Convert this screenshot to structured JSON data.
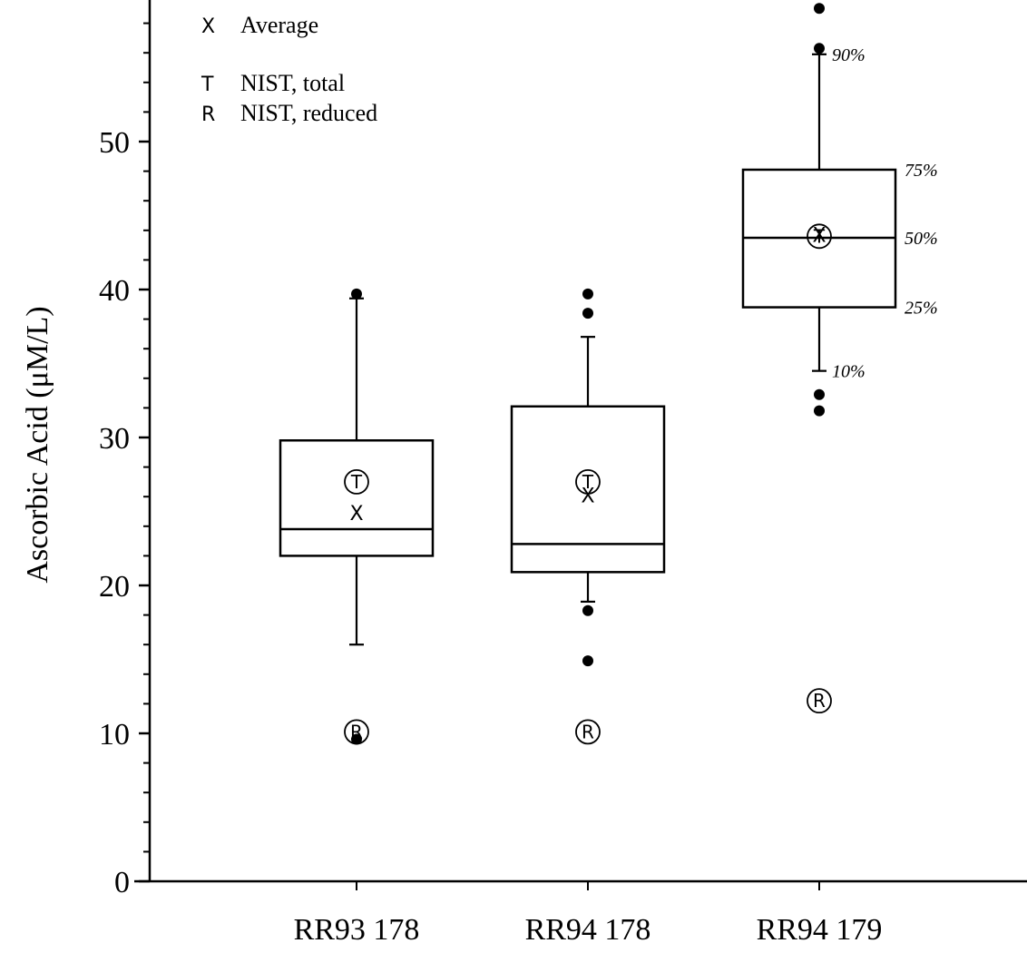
{
  "chart_data": {
    "type": "boxplot",
    "ylabel": "Ascorbic Acid  (μM/L)",
    "xlabel": "",
    "ylim": [
      0,
      59.5
    ],
    "yticks_major": [
      0,
      10,
      20,
      30,
      40,
      50
    ],
    "ytick_minor_step": 2,
    "categories": [
      "RR93 178",
      "RR94 178",
      "RR94 179"
    ],
    "boxes": [
      {
        "label": "RR93 178",
        "p10": 16,
        "p25": 22,
        "median": 23.8,
        "p75": 29.8,
        "p90": 39.4,
        "average": 24.9,
        "nist_total": 27.0,
        "nist_reduced": 10.1,
        "outliers": [
          39.7,
          9.6
        ]
      },
      {
        "label": "RR94 178",
        "p10": 18.9,
        "p25": 20.9,
        "median": 22.8,
        "p75": 32.1,
        "p90": 36.8,
        "average": 26.1,
        "nist_total": 27.0,
        "nist_reduced": 10.1,
        "outliers": [
          39.7,
          38.4,
          18.3,
          14.9
        ]
      },
      {
        "label": "RR94 179",
        "p10": 34.5,
        "p25": 38.8,
        "median": 43.5,
        "p75": 48.1,
        "p90": 55.9,
        "average": 43.7,
        "nist_total": 43.6,
        "nist_reduced": 12.2,
        "outliers": [
          59,
          56.3,
          32.9,
          31.8
        ]
      }
    ],
    "percentile_labels": {
      "p90": "90%",
      "p75": "75%",
      "p50": "50%",
      "p25": "25%",
      "p10": "10%"
    },
    "legend": {
      "placement": "top-left",
      "items": [
        {
          "symbol": "X",
          "label": "Average"
        },
        {
          "symbol": "T",
          "label": "NIST, total"
        },
        {
          "symbol": "R",
          "label": "NIST, reduced"
        }
      ]
    },
    "marker_letters": {
      "total": "T",
      "reduced": "R",
      "average": "X"
    },
    "grid": false
  }
}
